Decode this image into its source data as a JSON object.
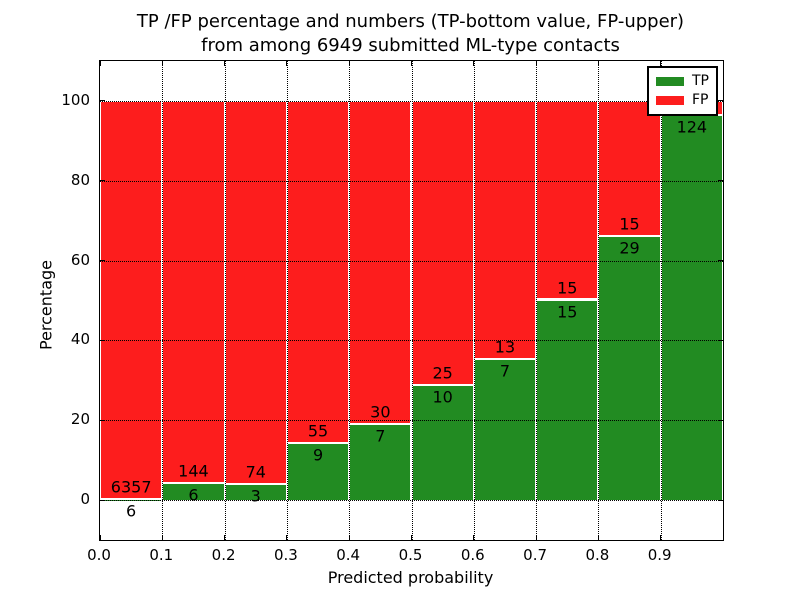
{
  "figure": {
    "title_line1": "TP /FP percentage and numbers (TP-bottom value, FP-upper)",
    "title_line2": "from among 6949 submitted ML-type contacts"
  },
  "colors": {
    "tp": "#228b22",
    "fp": "#fd1d1d",
    "grid": "#000000",
    "background": "#ffffff",
    "text": "#000000"
  },
  "chart_data": {
    "type": "bar",
    "stacked": true,
    "normalized_to_percent": true,
    "title": "TP /FP percentage and numbers (TP-bottom value, FP-upper)\nfrom among 6949 submitted ML-type contacts",
    "xlabel": "Predicted probability",
    "ylabel": "Percentage",
    "total_submitted": 6949,
    "xlim": [
      0.0,
      1.0
    ],
    "ylim": [
      -10,
      110
    ],
    "grid": "dotted",
    "x_ticks": [
      "0.0",
      "0.1",
      "0.2",
      "0.3",
      "0.4",
      "0.5",
      "0.6",
      "0.7",
      "0.8",
      "0.9"
    ],
    "y_ticks": [
      0,
      20,
      40,
      60,
      80,
      100
    ],
    "legend": {
      "position": "upper right",
      "entries": [
        {
          "label": "TP",
          "color": "#228b22"
        },
        {
          "label": "FP",
          "color": "#fd1d1d"
        }
      ]
    },
    "bins": [
      {
        "range": [
          0.0,
          0.1
        ],
        "tp": 6,
        "fp": 6357,
        "tp_label": "6",
        "fp_label": "6357"
      },
      {
        "range": [
          0.1,
          0.2
        ],
        "tp": 6,
        "fp": 144,
        "tp_label": "6",
        "fp_label": "144"
      },
      {
        "range": [
          0.2,
          0.3
        ],
        "tp": 3,
        "fp": 74,
        "tp_label": "3",
        "fp_label": "74"
      },
      {
        "range": [
          0.3,
          0.4
        ],
        "tp": 9,
        "fp": 55,
        "tp_label": "9",
        "fp_label": "55"
      },
      {
        "range": [
          0.4,
          0.5
        ],
        "tp": 7,
        "fp": 30,
        "tp_label": "7",
        "fp_label": "30"
      },
      {
        "range": [
          0.5,
          0.6
        ],
        "tp": 10,
        "fp": 25,
        "tp_label": "10",
        "fp_label": "25"
      },
      {
        "range": [
          0.6,
          0.7
        ],
        "tp": 7,
        "fp": 13,
        "tp_label": "7",
        "fp_label": "13"
      },
      {
        "range": [
          0.7,
          0.8
        ],
        "tp": 15,
        "fp": 15,
        "tp_label": "15",
        "fp_label": "15"
      },
      {
        "range": [
          0.8,
          0.9
        ],
        "tp": 29,
        "fp": 15,
        "tp_label": "29",
        "fp_label": "15"
      },
      {
        "range": [
          0.9,
          1.0
        ],
        "tp": 124,
        "fp": 5,
        "tp_label": "124",
        "fp_label": ""
      }
    ]
  }
}
